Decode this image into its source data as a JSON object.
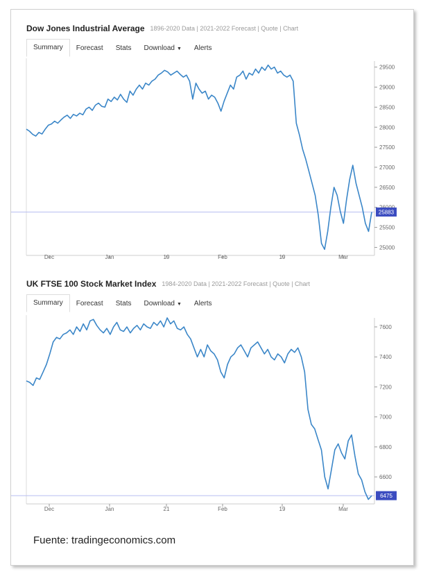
{
  "source_note": "Fuente: tradingeconomics.com",
  "panels": [
    {
      "title": "Dow Jones Industrial Average",
      "links": "1896-2020 Data | 2021-2022 Forecast | Quote | Chart",
      "tabs": [
        "Summary",
        "Forecast",
        "Stats",
        "Download",
        "Alerts"
      ],
      "active_tab": 0,
      "colors": {
        "line": "#3a86c8",
        "last_badge": "#3b4cc0",
        "ref_line": "#b8bdf0"
      }
    },
    {
      "title": "UK FTSE 100 Stock Market Index",
      "links": "1984-2020 Data | 2021-2022 Forecast | Quote | Chart",
      "tabs": [
        "Summary",
        "Forecast",
        "Stats",
        "Download",
        "Alerts"
      ],
      "active_tab": 0,
      "colors": {
        "line": "#3a86c8",
        "last_badge": "#3b4cc0",
        "ref_line": "#b8bdf0"
      }
    }
  ],
  "chart_data": [
    {
      "type": "line",
      "title": "Dow Jones Industrial Average",
      "x_ticks": [
        "Dec",
        "Jan",
        "19",
        "Feb",
        "19",
        "Mar"
      ],
      "y_ticks": [
        25000,
        25500,
        26000,
        26500,
        27000,
        27500,
        28000,
        28500,
        29000,
        29500
      ],
      "ylim": [
        24800,
        29650
      ],
      "last_value": 25883,
      "grid": false,
      "series": [
        {
          "values": [
            27950,
            27900,
            27820,
            27780,
            27870,
            27830,
            27950,
            28050,
            28080,
            28150,
            28100,
            28180,
            28250,
            28300,
            28220,
            28320,
            28280,
            28350,
            28310,
            28450,
            28500,
            28420,
            28550,
            28600,
            28520,
            28500,
            28700,
            28640,
            28750,
            28680,
            28820,
            28700,
            28620,
            28900,
            28800,
            28950,
            29050,
            28950,
            29100,
            29050,
            29150,
            29200,
            29300,
            29350,
            29420,
            29380,
            29300,
            29350,
            29400,
            29320,
            29250,
            29300,
            29150,
            28700,
            29100,
            28950,
            28850,
            28900,
            28700,
            28800,
            28750,
            28600,
            28400,
            28650,
            28850,
            29050,
            28950,
            29250,
            29300,
            29400,
            29200,
            29350,
            29300,
            29450,
            29350,
            29500,
            29420,
            29550,
            29450,
            29500,
            29350,
            29400,
            29300,
            29250,
            29300,
            29150,
            28100,
            27800,
            27450,
            27200,
            26900,
            26600,
            26300,
            25800,
            25100,
            24950,
            25400,
            26000,
            26500,
            26300,
            25900,
            25600,
            26200,
            26700,
            27050,
            26600,
            26300,
            26000,
            25600,
            25400,
            25883
          ]
        }
      ]
    },
    {
      "type": "line",
      "title": "UK FTSE 100 Stock Market Index",
      "x_ticks": [
        "Dec",
        "Jan",
        "21",
        "Feb",
        "19",
        "Mar"
      ],
      "y_ticks": [
        6600,
        6800,
        7000,
        7200,
        7400,
        7600
      ],
      "ylim": [
        6420,
        7660
      ],
      "last_value": 6475,
      "grid": false,
      "series": [
        {
          "values": [
            7240,
            7230,
            7210,
            7260,
            7250,
            7300,
            7350,
            7420,
            7500,
            7530,
            7520,
            7550,
            7560,
            7580,
            7550,
            7600,
            7570,
            7620,
            7580,
            7640,
            7650,
            7610,
            7580,
            7560,
            7590,
            7550,
            7600,
            7630,
            7580,
            7570,
            7600,
            7560,
            7590,
            7610,
            7580,
            7620,
            7600,
            7590,
            7630,
            7610,
            7640,
            7600,
            7660,
            7620,
            7640,
            7590,
            7580,
            7600,
            7550,
            7520,
            7460,
            7400,
            7450,
            7400,
            7480,
            7440,
            7420,
            7380,
            7300,
            7260,
            7350,
            7400,
            7420,
            7460,
            7480,
            7440,
            7400,
            7460,
            7480,
            7500,
            7460,
            7420,
            7450,
            7400,
            7380,
            7420,
            7400,
            7360,
            7420,
            7450,
            7430,
            7460,
            7400,
            7300,
            7050,
            6950,
            6920,
            6850,
            6780,
            6600,
            6520,
            6650,
            6780,
            6820,
            6760,
            6720,
            6840,
            6880,
            6740,
            6620,
            6580,
            6500,
            6450,
            6475
          ]
        }
      ]
    }
  ]
}
